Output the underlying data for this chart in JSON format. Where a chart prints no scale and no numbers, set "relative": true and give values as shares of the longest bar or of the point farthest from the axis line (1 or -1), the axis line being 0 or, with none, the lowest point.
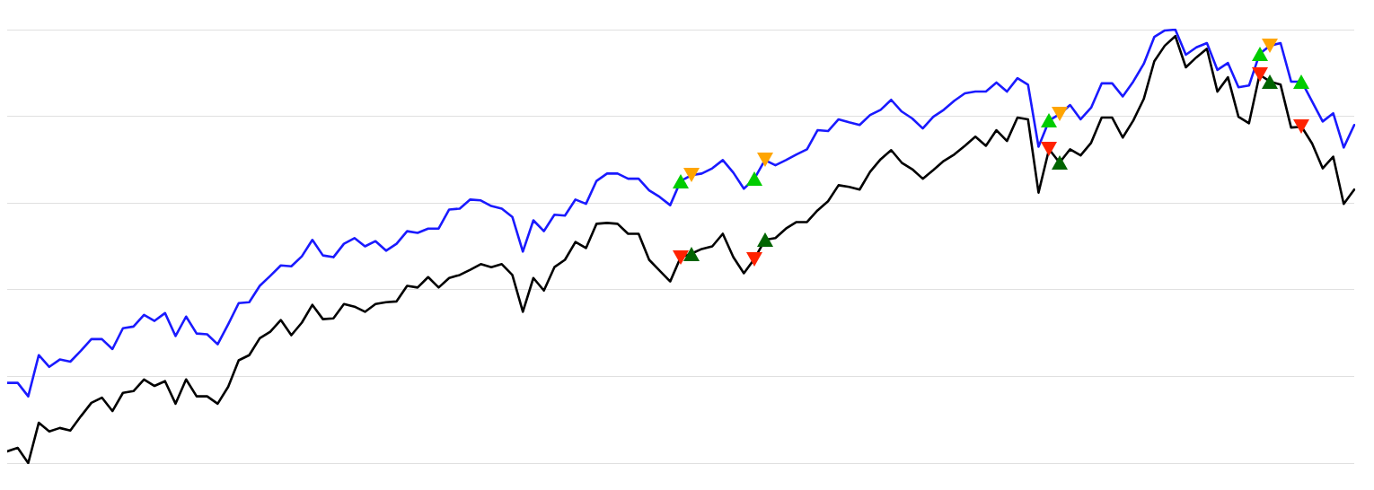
{
  "chart_data": {
    "type": "line",
    "relative": true,
    "grid": "y",
    "legend": false,
    "marker": "none",
    "line_style": "solid",
    "categories": [
      null,
      null,
      null,
      null,
      null,
      null,
      null,
      null,
      null,
      null,
      null,
      null,
      null,
      null,
      null,
      null,
      null,
      null,
      null,
      null,
      null,
      null,
      null,
      null,
      null,
      null,
      null,
      null,
      null,
      null,
      null,
      null,
      null,
      null,
      null,
      null,
      null,
      null,
      null,
      null,
      null,
      null,
      null,
      null,
      null,
      null,
      null,
      null,
      null,
      null,
      null,
      null,
      null,
      null,
      null,
      null,
      null,
      null,
      null,
      null,
      null,
      null,
      null,
      null,
      null,
      null,
      null,
      null,
      null,
      null,
      null,
      null,
      null,
      null,
      null,
      null,
      null,
      null,
      null,
      null,
      null,
      null,
      null,
      null,
      null,
      null,
      null,
      null,
      null,
      null,
      null,
      null,
      null,
      null,
      null,
      null,
      null,
      null,
      null,
      null,
      null,
      null,
      null,
      null,
      null,
      null,
      null,
      null,
      null,
      null,
      null,
      null,
      null,
      null,
      null,
      null,
      null,
      null,
      null,
      null,
      null,
      null,
      null,
      null,
      null,
      null,
      null,
      null,
      null
    ],
    "series": [
      {
        "color": "#1a1aff",
        "values": [
          0.185,
          0.185,
          0.154,
          0.249,
          0.222,
          0.239,
          0.234,
          0.259,
          0.286,
          0.286,
          0.263,
          0.311,
          0.315,
          0.342,
          0.328,
          0.346,
          0.293,
          0.338,
          0.299,
          0.297,
          0.274,
          0.32,
          0.369,
          0.371,
          0.409,
          0.432,
          0.456,
          0.454,
          0.477,
          0.515,
          0.479,
          0.475,
          0.506,
          0.519,
          0.5,
          0.512,
          0.49,
          0.506,
          0.535,
          0.531,
          0.541,
          0.541,
          0.585,
          0.587,
          0.608,
          0.606,
          0.593,
          0.587,
          0.568,
          0.488,
          0.56,
          0.535,
          0.573,
          0.571,
          0.608,
          0.598,
          0.651,
          0.668,
          0.668,
          0.656,
          0.656,
          0.629,
          0.614,
          0.595,
          0.651,
          0.664,
          0.668,
          0.68,
          0.699,
          0.67,
          0.633,
          0.656,
          0.699,
          0.687,
          0.699,
          0.712,
          0.724,
          0.768,
          0.766,
          0.793,
          0.786,
          0.78,
          0.803,
          0.815,
          0.838,
          0.811,
          0.795,
          0.772,
          0.799,
          0.815,
          0.836,
          0.853,
          0.857,
          0.857,
          0.878,
          0.857,
          0.888,
          0.873,
          0.73,
          0.79,
          0.805,
          0.826,
          0.793,
          0.82,
          0.876,
          0.876,
          0.846,
          0.88,
          0.921,
          0.983,
          0.998,
          1,
          0.942,
          0.959,
          0.969,
          0.907,
          0.923,
          0.867,
          0.871,
          0.944,
          0.963,
          0.969,
          0.88,
          0.88,
          0.834,
          0.788,
          0.807,
          0.728,
          0.78
        ]
      },
      {
        "color": "#000000",
        "values": [
          0.027,
          0.035,
          0,
          0.093,
          0.073,
          0.081,
          0.075,
          0.108,
          0.139,
          0.151,
          0.12,
          0.162,
          0.166,
          0.193,
          0.178,
          0.189,
          0.137,
          0.193,
          0.154,
          0.154,
          0.137,
          0.176,
          0.237,
          0.249,
          0.288,
          0.303,
          0.33,
          0.295,
          0.324,
          0.365,
          0.332,
          0.334,
          0.367,
          0.361,
          0.349,
          0.367,
          0.371,
          0.373,
          0.409,
          0.405,
          0.429,
          0.405,
          0.427,
          0.434,
          0.446,
          0.459,
          0.452,
          0.459,
          0.434,
          0.349,
          0.427,
          0.398,
          0.452,
          0.469,
          0.51,
          0.496,
          0.552,
          0.554,
          0.552,
          0.529,
          0.529,
          0.469,
          0.444,
          0.419,
          0.475,
          0.483,
          0.494,
          0.5,
          0.529,
          0.475,
          0.438,
          0.471,
          0.515,
          0.519,
          0.541,
          0.556,
          0.556,
          0.583,
          0.604,
          0.641,
          0.637,
          0.631,
          0.672,
          0.701,
          0.722,
          0.693,
          0.678,
          0.656,
          0.676,
          0.697,
          0.712,
          0.732,
          0.753,
          0.732,
          0.768,
          0.743,
          0.797,
          0.793,
          0.624,
          0.724,
          0.693,
          0.724,
          0.71,
          0.739,
          0.797,
          0.797,
          0.751,
          0.79,
          0.84,
          0.927,
          0.963,
          0.985,
          0.913,
          0.936,
          0.956,
          0.857,
          0.89,
          0.799,
          0.784,
          0.896,
          0.88,
          0.873,
          0.774,
          0.776,
          0.737,
          0.68,
          0.707,
          0.598,
          0.631
        ]
      }
    ]
  }
}
